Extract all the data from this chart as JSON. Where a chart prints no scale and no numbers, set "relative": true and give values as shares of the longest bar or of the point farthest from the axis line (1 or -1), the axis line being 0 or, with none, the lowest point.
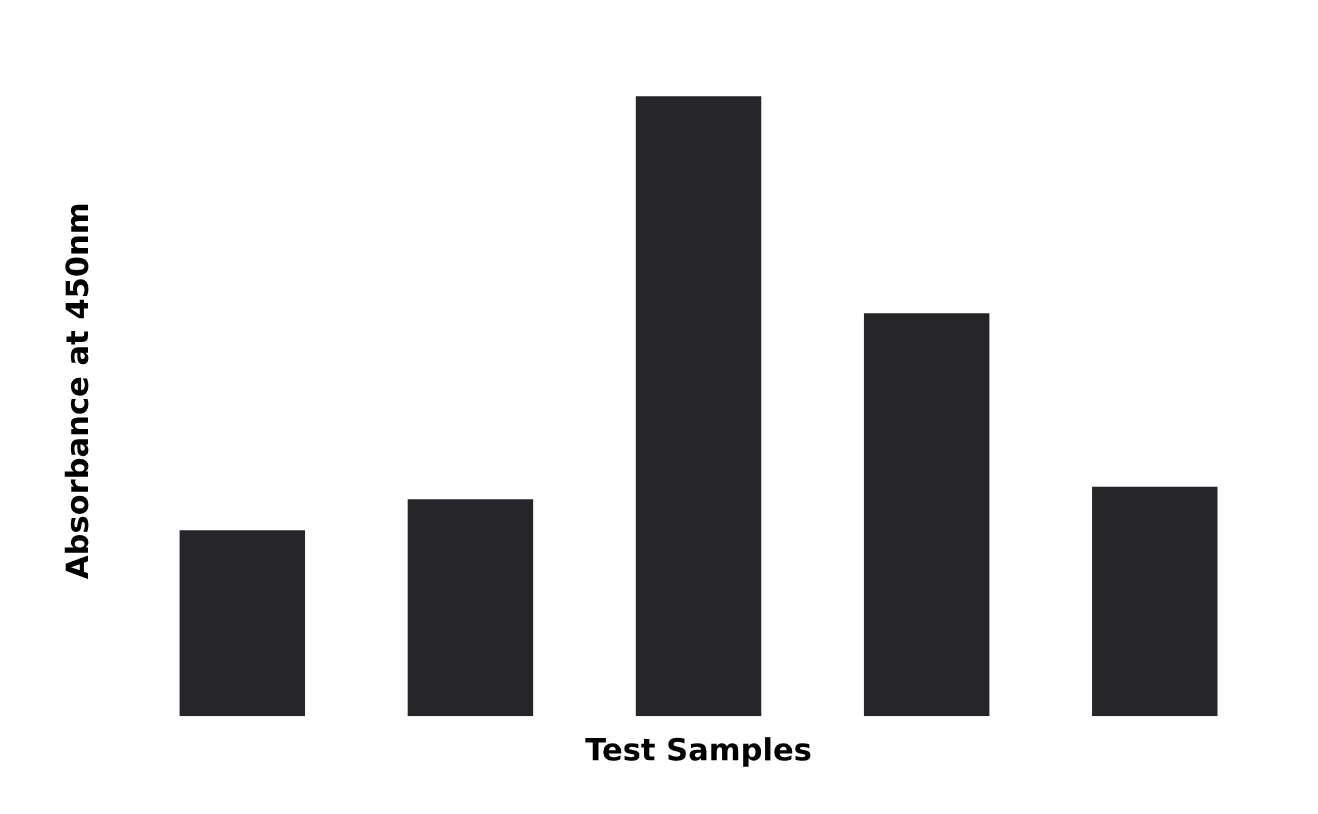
{
  "chart_data": {
    "type": "bar",
    "relative": true,
    "xlabel": "Test Samples",
    "ylabel": "Absorbance at 450nm",
    "categories": [
      null,
      null,
      null,
      null,
      null
    ],
    "values": [
      0.3,
      0.35,
      1,
      0.65,
      0.37
    ],
    "color": "#26262a",
    "grid": false,
    "legend": false
  }
}
